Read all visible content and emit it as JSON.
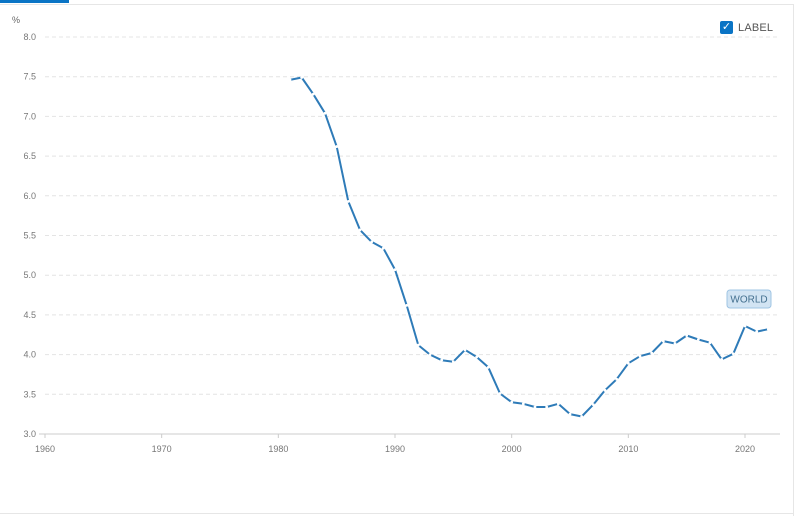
{
  "legend": {
    "checkbox_mark": "✓",
    "label": "LABEL"
  },
  "chart_data": {
    "type": "line",
    "ylabel": "%",
    "xlim": [
      1960,
      2023
    ],
    "ylim": [
      3.0,
      8.0
    ],
    "x_ticks": [
      "1960",
      "1970",
      "1980",
      "1990",
      "2000",
      "2010",
      "2020"
    ],
    "y_ticks": [
      "3.0",
      "3.5",
      "4.0",
      "4.5",
      "5.0",
      "5.5",
      "6.0",
      "6.5",
      "7.0",
      "7.5",
      "8.0"
    ],
    "grid": true,
    "series": [
      {
        "name": "WORLD",
        "color": "#2e7bb8",
        "x": [
          1981,
          1982,
          1983,
          1984,
          1985,
          1986,
          1987,
          1988,
          1989,
          1990,
          1991,
          1992,
          1993,
          1994,
          1995,
          1996,
          1997,
          1998,
          1999,
          2000,
          2001,
          2002,
          2003,
          2004,
          2005,
          2006,
          2007,
          2008,
          2009,
          2010,
          2011,
          2012,
          2013,
          2014,
          2015,
          2016,
          2017,
          2018,
          2019,
          2020,
          2021,
          2022
        ],
        "y": [
          7.46,
          7.49,
          7.28,
          7.04,
          6.62,
          5.93,
          5.57,
          5.42,
          5.34,
          5.07,
          4.62,
          4.12,
          4.0,
          3.93,
          3.91,
          4.06,
          3.97,
          3.84,
          3.51,
          3.4,
          3.38,
          3.34,
          3.34,
          3.38,
          3.25,
          3.22,
          3.37,
          3.55,
          3.69,
          3.89,
          3.98,
          4.02,
          4.17,
          4.14,
          4.24,
          4.19,
          4.15,
          3.94,
          4.01,
          4.36,
          4.29,
          4.32
        ]
      }
    ],
    "annotation": "WORLD"
  }
}
